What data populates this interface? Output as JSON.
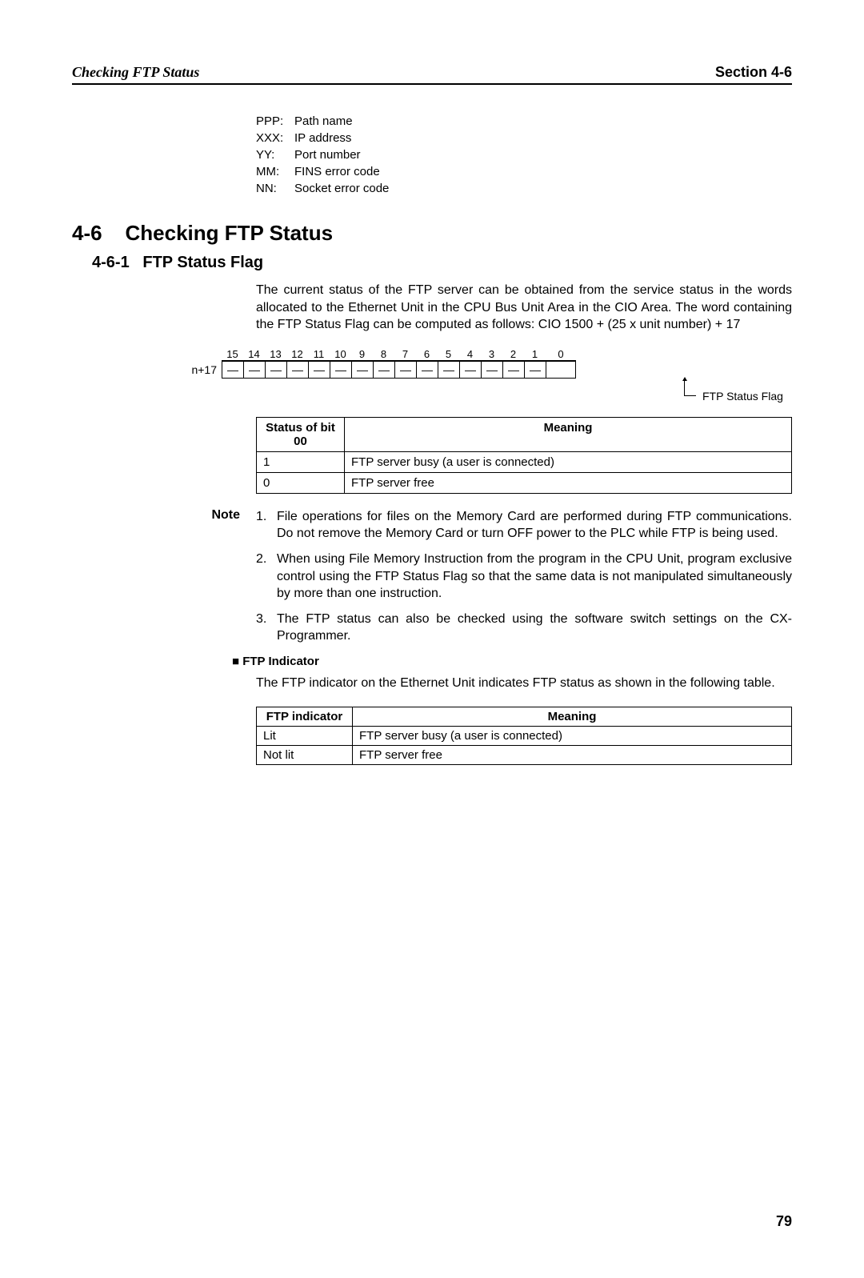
{
  "header": {
    "left": "Checking FTP Status",
    "right": "Section 4-6"
  },
  "legend": [
    {
      "key": "PPP:",
      "desc": "Path name"
    },
    {
      "key": "XXX:",
      "desc": "IP address"
    },
    {
      "key": "YY:",
      "desc": "Port number"
    },
    {
      "key": "MM:",
      "desc": "FINS error code"
    },
    {
      "key": "NN:",
      "desc": "Socket error code"
    }
  ],
  "section": {
    "num": "4-6",
    "title": "Checking FTP Status"
  },
  "subsection": {
    "num": "4-6-1",
    "title": "FTP Status Flag"
  },
  "intro_text": "The current status of the FTP server can be obtained from the service status in the words allocated to the Ethernet Unit in the CPU Bus Unit Area in the CIO Area. The word containing the FTP Status Flag can be computed as follows: CIO 1500 + (25 x unit number) + 17",
  "bit_diagram": {
    "row_label": "n+17",
    "bits": [
      "15",
      "14",
      "13",
      "12",
      "11",
      "10",
      "9",
      "8",
      "7",
      "6",
      "5",
      "4",
      "3",
      "2",
      "1",
      "0"
    ],
    "cells": [
      "—",
      "—",
      "—",
      "—",
      "—",
      "—",
      "—",
      "—",
      "—",
      "—",
      "—",
      "—",
      "—",
      "—",
      "—",
      ""
    ],
    "pointer_label": "FTP Status Flag"
  },
  "status_table": {
    "headers": [
      "Status of bit 00",
      "Meaning"
    ],
    "rows": [
      [
        "1",
        "FTP server busy (a user is connected)"
      ],
      [
        "0",
        "FTP server free"
      ]
    ]
  },
  "note": {
    "label": "Note",
    "items": [
      "File operations for files on the Memory Card are performed during FTP communications. Do not remove the Memory Card or turn OFF power to the PLC while FTP is being used.",
      "When using File Memory Instruction from the program in the CPU Unit, program exclusive control using the FTP Status Flag so that the same data is not manipulated simultaneously by more than one instruction.",
      "The FTP status can also be checked using the software switch settings on the CX-Programmer."
    ]
  },
  "ftp_indicator": {
    "heading": "FTP Indicator",
    "text": "The FTP indicator on the Ethernet Unit indicates FTP status as shown in the following table.",
    "headers": [
      "FTP indicator",
      "Meaning"
    ],
    "rows": [
      [
        "Lit",
        "FTP server busy (a user is connected)"
      ],
      [
        "Not lit",
        "FTP server free"
      ]
    ]
  },
  "page_num": "79"
}
